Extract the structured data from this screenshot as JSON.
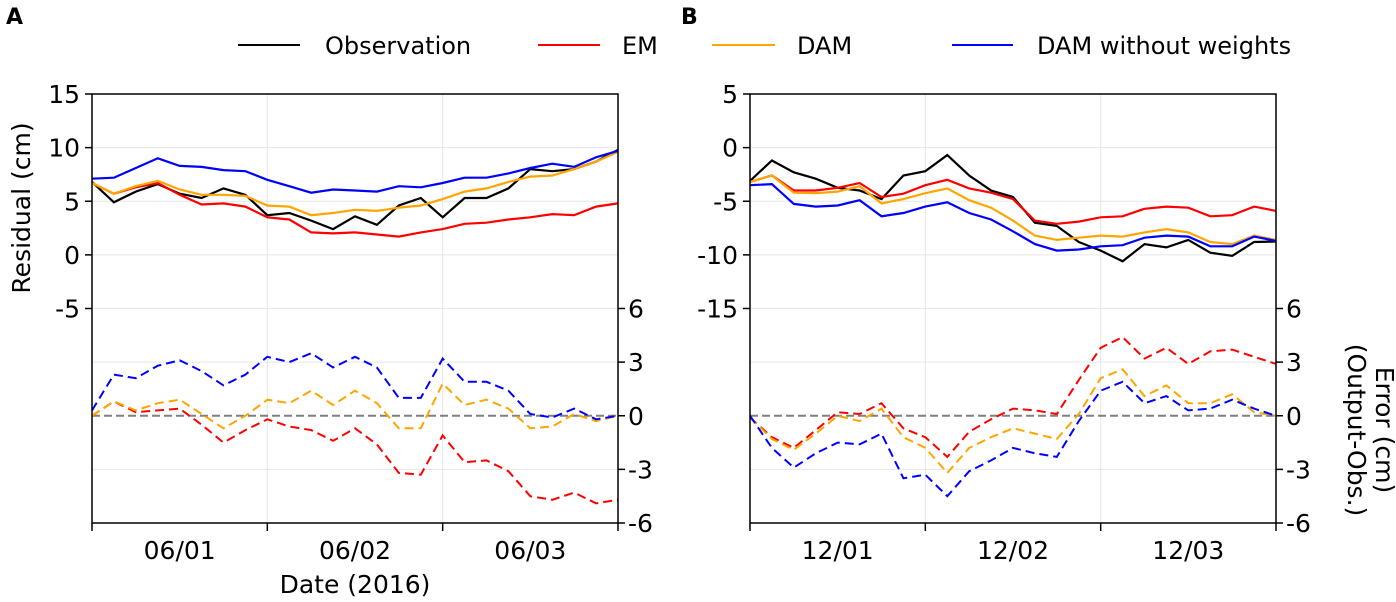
{
  "chart_data": {
    "type": "line",
    "legend": {
      "position": "top",
      "entries": [
        {
          "name": "Observation",
          "color": "#000000"
        },
        {
          "name": "EM",
          "color": "#ff0000"
        },
        {
          "name": "DAM",
          "color": "#ffa500"
        },
        {
          "name": "DAM without weights",
          "color": "#0000ff"
        }
      ]
    },
    "panels": [
      {
        "label": "A",
        "xlabel": "Date (2016)",
        "ylabel": "Residual (cm)",
        "y2label": [
          "Error (cm)",
          "(Output-Obs.)"
        ],
        "xticklabels": [
          "06/01",
          "06/02",
          "06/03"
        ],
        "xlim_days": [
          0,
          3
        ],
        "ylim": [
          -25,
          15
        ],
        "yticks": [
          15,
          10,
          5,
          0,
          -5
        ],
        "yticklabels": [
          "15",
          "10",
          "5",
          "0",
          "-5"
        ],
        "y2lim": [
          -6,
          18
        ],
        "y2ticks": [
          6,
          3,
          0,
          -3,
          -6
        ],
        "y2ticklabels": [
          "6",
          "3",
          "0",
          "-3",
          "-6"
        ],
        "x_step_days": 0.125,
        "residual": {
          "Observation": [
            6.8,
            4.9,
            5.9,
            6.6,
            5.7,
            5.3,
            6.2,
            5.6,
            3.7,
            3.9,
            3.2,
            2.4,
            3.6,
            2.8,
            4.6,
            5.3,
            3.5,
            5.3,
            5.3,
            6.2,
            8.0,
            7.8,
            8.0,
            8.7,
            9.8
          ],
          "EM": [
            6.7,
            5.7,
            6.3,
            6.7,
            5.6,
            4.7,
            4.8,
            4.5,
            3.5,
            3.3,
            2.1,
            2.0,
            2.1,
            1.9,
            1.7,
            2.1,
            2.4,
            2.9,
            3.0,
            3.3,
            3.5,
            3.8,
            3.7,
            4.5,
            4.8
          ],
          "DAM": [
            6.7,
            5.7,
            6.4,
            6.9,
            6.1,
            5.6,
            5.6,
            5.5,
            4.6,
            4.5,
            3.7,
            3.9,
            4.2,
            4.1,
            4.4,
            4.6,
            5.2,
            5.9,
            6.2,
            6.8,
            7.3,
            7.4,
            8.0,
            8.7,
            9.6
          ],
          "DAM without weights": [
            7.1,
            7.2,
            8.1,
            9.0,
            8.3,
            8.2,
            7.9,
            7.8,
            7.0,
            6.4,
            5.8,
            6.1,
            6.0,
            5.9,
            6.4,
            6.3,
            6.7,
            7.2,
            7.2,
            7.6,
            8.1,
            8.5,
            8.2,
            9.1,
            9.7
          ]
        },
        "error": {
          "EM": [
            0,
            0.8,
            0.2,
            0.3,
            0.4,
            -0.5,
            -1.5,
            -0.8,
            -0.2,
            -0.6,
            -0.8,
            -1.4,
            -0.7,
            -1.6,
            -3.2,
            -3.3,
            -1.1,
            -2.6,
            -2.5,
            -3.1,
            -4.5,
            -4.7,
            -4.3,
            -4.9,
            -4.7
          ],
          "DAM": [
            0,
            0.8,
            0.3,
            0.7,
            0.9,
            0.1,
            -0.7,
            0,
            0.9,
            0.7,
            1.4,
            0.6,
            1.4,
            0.7,
            -0.7,
            -0.7,
            1.8,
            0.6,
            0.9,
            0.4,
            -0.7,
            -0.6,
            0.1,
            -0.3,
            0
          ],
          "DAM without weights": [
            0.3,
            2.3,
            2.1,
            2.8,
            3.1,
            2.5,
            1.7,
            2.3,
            3.3,
            3.0,
            3.5,
            2.7,
            3.3,
            2.7,
            1.0,
            1.0,
            3.2,
            1.9,
            1.9,
            1.4,
            0.1,
            -0.1,
            0.4,
            -0.2,
            0
          ]
        }
      },
      {
        "label": "B",
        "xlabel": "",
        "ylabel": "",
        "y2label": [
          "Error (cm)",
          "(Output-Obs.)"
        ],
        "xticklabels": [
          "12/01",
          "12/02",
          "12/03"
        ],
        "xlim_days": [
          0,
          3
        ],
        "ylim": [
          -35,
          5
        ],
        "yticks": [
          5,
          0,
          -5,
          -10,
          -15
        ],
        "yticklabels": [
          "5",
          "0",
          "-5",
          "-10",
          "-15"
        ],
        "y2lim": [
          -6,
          18
        ],
        "y2ticks": [
          6,
          3,
          0,
          -3,
          -6
        ],
        "y2ticklabels": [
          "6",
          "3",
          "0",
          "-3",
          "-6"
        ],
        "x_step_days": 0.125,
        "residual": {
          "Observation": [
            -3.1,
            -1.2,
            -2.3,
            -2.9,
            -3.75,
            -4.0,
            -4.8,
            -2.6,
            -2.2,
            -0.7,
            -2.6,
            -4.0,
            -4.6,
            -7.0,
            -7.3,
            -8.8,
            -9.6,
            -10.6,
            -9.0,
            -9.3,
            -8.6,
            -9.8,
            -10.1,
            -8.8,
            -8.75
          ],
          "EM": [
            -3.2,
            -2.6,
            -4.0,
            -4.0,
            -3.75,
            -3.3,
            -4.6,
            -4.3,
            -3.5,
            -3.0,
            -3.8,
            -4.2,
            -4.8,
            -6.8,
            -7.1,
            -6.9,
            -6.5,
            -6.4,
            -5.7,
            -5.5,
            -5.6,
            -6.4,
            -6.3,
            -5.5,
            -5.9
          ],
          "DAM": [
            -3.2,
            -2.6,
            -4.2,
            -4.25,
            -4.1,
            -3.6,
            -5.2,
            -4.8,
            -4.25,
            -3.8,
            -4.9,
            -5.6,
            -6.8,
            -8.2,
            -8.6,
            -8.4,
            -8.2,
            -8.3,
            -7.9,
            -7.6,
            -7.9,
            -8.8,
            -9.0,
            -8.2,
            -8.6
          ],
          "DAM without weights": [
            -3.5,
            -3.4,
            -5.25,
            -5.5,
            -5.4,
            -4.9,
            -6.4,
            -6.1,
            -5.5,
            -5.1,
            -6.1,
            -6.7,
            -7.8,
            -9.0,
            -9.6,
            -9.5,
            -9.2,
            -9.1,
            -8.4,
            -8.2,
            -8.3,
            -9.2,
            -9.2,
            -8.3,
            -8.7
          ]
        },
        "error": {
          "EM": [
            -0.1,
            -1.2,
            -1.8,
            -0.8,
            0.2,
            0.1,
            0.7,
            -0.7,
            -1.2,
            -2.3,
            -0.9,
            -0.2,
            0.4,
            0.3,
            0.1,
            2.0,
            3.8,
            4.4,
            3.2,
            3.8,
            2.9,
            3.6,
            3.7,
            3.3,
            2.9
          ],
          "DAM": [
            -0.1,
            -1.3,
            -1.9,
            -1.0,
            0,
            -0.3,
            0.4,
            -1.2,
            -1.8,
            -3.2,
            -1.8,
            -1.2,
            -0.7,
            -1.0,
            -1.3,
            0.1,
            2.1,
            2.6,
            1.1,
            1.7,
            0.7,
            0.7,
            1.2,
            0.2,
            0
          ],
          "DAM without weights": [
            0,
            -1.8,
            -2.9,
            -2.1,
            -1.5,
            -1.6,
            -1.0,
            -3.5,
            -3.3,
            -4.5,
            -3.1,
            -2.5,
            -1.8,
            -2.1,
            -2.3,
            -0.3,
            1.4,
            1.9,
            0.7,
            1.1,
            0.3,
            0.4,
            0.9,
            0.4,
            0
          ]
        }
      }
    ]
  }
}
